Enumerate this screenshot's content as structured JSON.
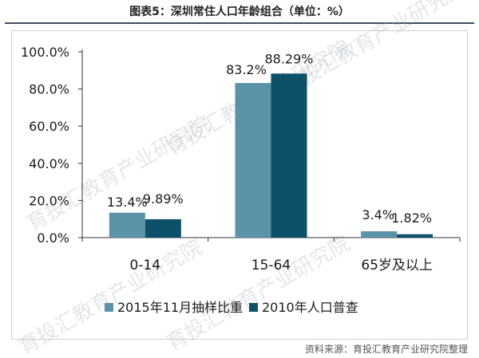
{
  "header": {
    "title": "图表5：深圳常住人口年龄组合（单位：%）"
  },
  "footer": {
    "source": "资料来源：育投汇教育产业研究院整理"
  },
  "watermark": {
    "text": "育投汇教育产业研究院"
  },
  "colors": {
    "series_2015": "#5a93a8",
    "series_2010": "#0c5069",
    "axis": "#333333",
    "text": "#1a1a1a"
  },
  "chart_data": {
    "type": "bar",
    "title": "深圳常住人口年龄组合（单位：%）",
    "xlabel": "",
    "ylabel": "",
    "categories": [
      "0-14",
      "15-64",
      "65岁及以上"
    ],
    "series": [
      {
        "name": "2015年11月抽样比重",
        "values": [
          13.4,
          83.2,
          3.4
        ],
        "labels": [
          "13.4%",
          "83.2%",
          "3.4%"
        ]
      },
      {
        "name": "2010年人口普查",
        "values": [
          9.89,
          88.29,
          1.82
        ],
        "labels": [
          "9.89%",
          "88.29%",
          "1.82%"
        ]
      }
    ],
    "ylim": [
      0,
      100
    ],
    "yticks": [
      0,
      20,
      40,
      60,
      80,
      100
    ],
    "ytick_labels": [
      "0.0%",
      "20.0%",
      "40.0%",
      "60.0%",
      "80.0%",
      "100.0%"
    ],
    "grid": false,
    "legend_position": "bottom"
  }
}
